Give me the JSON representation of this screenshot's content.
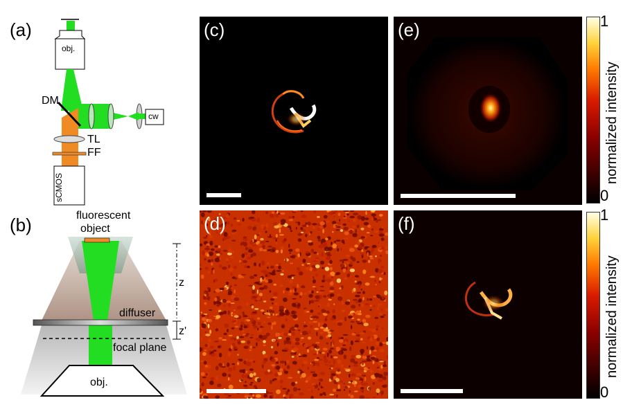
{
  "figure": {
    "panel_a": {
      "letter": "(a)",
      "labels": {
        "objective": "obj.",
        "dm": "DM",
        "tl": "TL",
        "ff": "FF",
        "camera": "sCMOS",
        "laser": "cw"
      }
    },
    "panel_b": {
      "letter": "(b)",
      "labels": {
        "object_line1": "fluorescent",
        "object_line2": "object",
        "z": "z",
        "diffuser": "diffuser",
        "zprime": "z'",
        "focal_plane": "focal plane",
        "objective": "obj."
      }
    },
    "panel_c": {
      "letter": "(c)"
    },
    "panel_d": {
      "letter": "(d)"
    },
    "panel_e": {
      "letter": "(e)"
    },
    "panel_f": {
      "letter": "(f)"
    },
    "colorbars": [
      {
        "max_label": "1",
        "min_label": "0",
        "title": "normalized intensity"
      },
      {
        "max_label": "1",
        "min_label": "0",
        "title": "normalized intensity"
      }
    ]
  },
  "colors": {
    "green": "#22dd22",
    "orange": "#f08a24",
    "background": "#000000",
    "speckle": "#d02800"
  }
}
